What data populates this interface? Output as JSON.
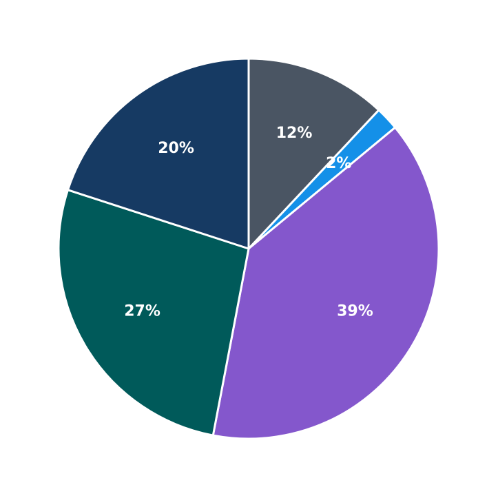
{
  "chart_data": {
    "type": "pie",
    "values": [
      12,
      2,
      39,
      27,
      20
    ],
    "value_labels": [
      "12%",
      "2%",
      "39%",
      "27%",
      "20%"
    ],
    "colors": [
      "#4a5563",
      "#1490e8",
      "#8457cc",
      "#005a5a",
      "#163a63"
    ]
  }
}
